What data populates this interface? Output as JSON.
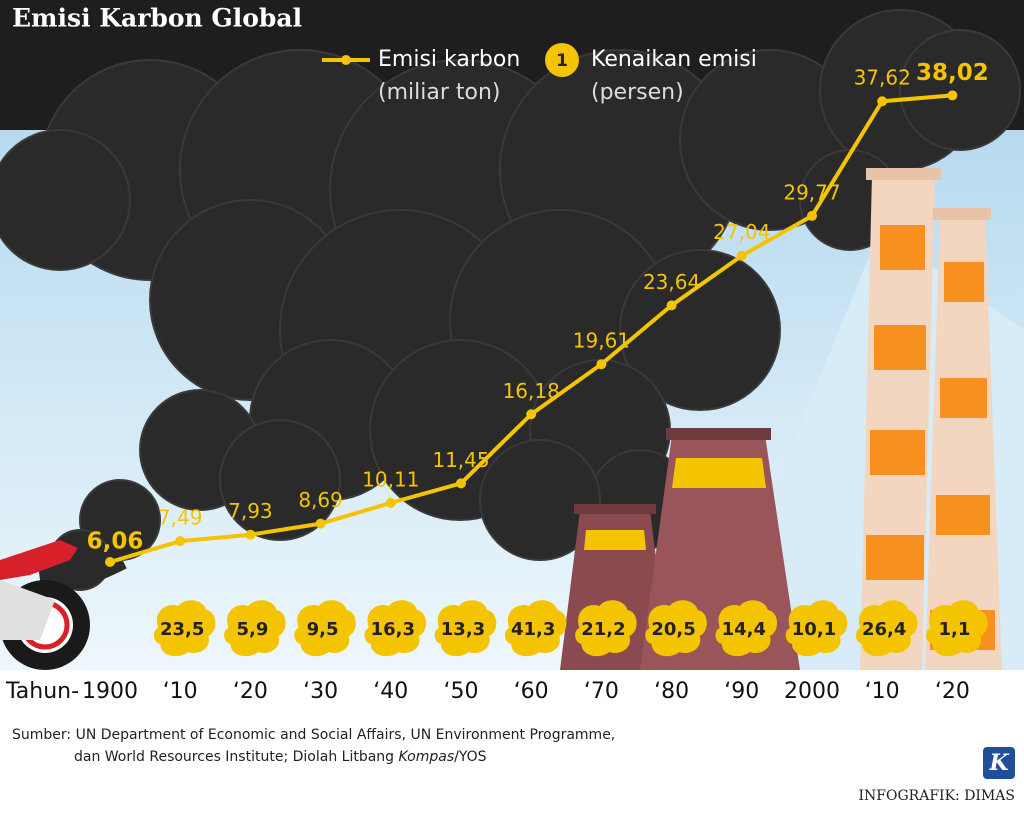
{
  "title": "Emisi Karbon Global",
  "legend": {
    "line_name": "Emisi karbon",
    "line_unit": "(miliar ton)",
    "badge_sample": "1",
    "badge_name": "Kenaikan emisi",
    "badge_unit": "(persen)"
  },
  "axis_prefix": "Tahun-",
  "source": {
    "line1": "Sumber: UN Department of Economic and Social Affairs, UN Environment Programme,",
    "line2": "dan World Resources Institute; Diolah Litbang ",
    "line2_italic": "Kompas",
    "line2_end": "/YOS"
  },
  "logo": "K",
  "credit": "INFOGRAFIK: DIMAS",
  "chart_data": {
    "type": "line",
    "categories": [
      "1900",
      "‘10",
      "‘20",
      "‘30",
      "‘40",
      "‘50",
      "‘60",
      "‘70",
      "‘80",
      "‘90",
      "2000",
      "‘10",
      "‘20"
    ],
    "series": [
      {
        "name": "Emisi karbon",
        "color": "#f5c400",
        "values": [
          6.06,
          7.49,
          7.93,
          8.69,
          10.11,
          11.45,
          16.18,
          19.61,
          23.64,
          27.04,
          29.77,
          37.62,
          38.02
        ],
        "value_labels": [
          "6,06",
          "7,49",
          "7,93",
          "8,69",
          "10,11",
          "11,45",
          "16,18",
          "19,61",
          "23,64",
          "27,04",
          "29,77",
          "37,62",
          "38,02"
        ]
      },
      {
        "name": "Kenaikan emisi",
        "color": "#f5c400",
        "values": [
          null,
          23.5,
          5.9,
          9.5,
          16.3,
          13.3,
          41.3,
          21.2,
          20.5,
          14.4,
          10.1,
          26.4,
          1.1
        ],
        "value_labels": [
          null,
          "23,5",
          "5,9",
          "9,5",
          "16,3",
          "13,3",
          "41,3",
          "21,2",
          "20,5",
          "14,4",
          "10,1",
          "26,4",
          "1,1"
        ]
      }
    ]
  }
}
